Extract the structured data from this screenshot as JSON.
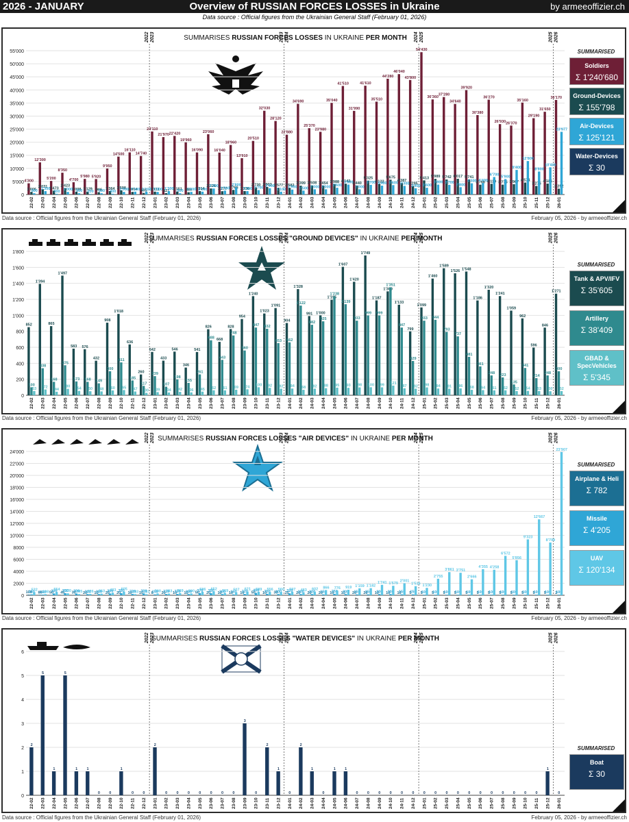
{
  "header": {
    "left": "2026 - JANUARY",
    "title": "Overview of RUSSIAN FORCES LOSSES in Ukraine",
    "right": "by armeeoffizier.ch",
    "subtitle": "Data source : Official figures from the Ukrainian General Staff (February 01, 2026)"
  },
  "footer": {
    "left": "Data source : Official figures from the Ukrainian General Staff (February 01, 2026)",
    "right": "February 05, 2026 - by armeeoffizier.ch"
  },
  "summary_label": "SUMMARISED",
  "months": [
    "22-02",
    "22-03",
    "22-04",
    "22-05",
    "22-06",
    "22-07",
    "22-08",
    "22-09",
    "22-10",
    "22-11",
    "22-12",
    "23-01",
    "23-02",
    "23-03",
    "23-04",
    "23-05",
    "23-06",
    "23-07",
    "23-08",
    "23-09",
    "23-10",
    "23-11",
    "23-12",
    "24-01",
    "24-02",
    "24-03",
    "24-04",
    "24-05",
    "24-06",
    "24-07",
    "24-08",
    "24-09",
    "24-10",
    "24-11",
    "24-12",
    "25-01",
    "25-02",
    "25-03",
    "25-04",
    "25-05",
    "25-06",
    "25-07",
    "25-08",
    "25-09",
    "25-10",
    "25-11",
    "25-12",
    "26-01"
  ],
  "year_markers": [
    {
      "after": 10,
      "label": "2022\n2023"
    },
    {
      "after": 22,
      "label": "2023\n2024"
    },
    {
      "after": 34,
      "label": "2024\n2025"
    },
    {
      "after": 46,
      "label": "2025\n2026"
    }
  ],
  "panels": [
    {
      "id": "overall",
      "title_parts": [
        {
          "t": "SUMMARISES ",
          "b": false
        },
        {
          "t": "RUSSIAN FORCES LOSSES",
          "b": true
        },
        {
          "t": " IN UKRAINE ",
          "b": false
        },
        {
          "t": "PER MONTH",
          "b": true
        }
      ],
      "emblem": "eagle-emblem",
      "summary": [
        {
          "name": "Soldiers",
          "value": "Σ 1'240'680",
          "color": "#6e1f36"
        },
        {
          "name": "Ground-Devices",
          "value": "Σ 155'798",
          "color": "#1b4b4f"
        },
        {
          "name": "Air-Devices",
          "value": "Σ 125'121",
          "color": "#2fa6d6"
        },
        {
          "name": "Water-Devices",
          "value": "Σ 30",
          "color": "#1b3a5e"
        }
      ]
    },
    {
      "id": "ground",
      "title_parts": [
        {
          "t": "SUMMARISES ",
          "b": false
        },
        {
          "t": "RUSSIAN FORCES LOSSES \"GROUND DEVICES\"",
          "b": true
        },
        {
          "t": " IN UKRAINE ",
          "b": false
        },
        {
          "t": "PER MONTH",
          "b": true
        }
      ],
      "emblem": "army-star-emblem",
      "summary": [
        {
          "name": "Tank & APV/IFV",
          "value": "Σ 35'605",
          "color": "#1b4b4f"
        },
        {
          "name": "Artillery",
          "value": "Σ 38'409",
          "color": "#2f8a8e"
        },
        {
          "name": "GBAD & SpecVehicles",
          "value": "Σ 5'345",
          "color": "#5fc0c8"
        }
      ]
    },
    {
      "id": "air",
      "title_parts": [
        {
          "t": "SUMMARISES ",
          "b": false
        },
        {
          "t": "RUSSIAN FORCES LOSSES \"AIR DEVICES\"",
          "b": true
        },
        {
          "t": " IN UKRAINE ",
          "b": false
        },
        {
          "t": "PER MONTH",
          "b": true
        }
      ],
      "emblem": "air-star-emblem",
      "summary": [
        {
          "name": "Airplane & Heli",
          "value": "Σ 782",
          "color": "#1c6f93"
        },
        {
          "name": "Missile",
          "value": "Σ 4'205",
          "color": "#2fa6d6"
        },
        {
          "name": "UAV",
          "value": "Σ 120'134",
          "color": "#5fc7e6"
        }
      ]
    },
    {
      "id": "water",
      "title_parts": [
        {
          "t": "SUMMARISES ",
          "b": false
        },
        {
          "t": "RUSSIAN FORCES LOSSES \"WATER DEVICES\"",
          "b": true
        },
        {
          "t": " IN UKRAINE ",
          "b": false
        },
        {
          "t": "PER MONTH",
          "b": true
        }
      ],
      "emblem": "navy-flag-emblem",
      "summary": [
        {
          "name": "Boat",
          "value": "Σ 30",
          "color": "#1b3a5e"
        }
      ]
    }
  ],
  "chart_data": [
    {
      "type": "bar",
      "title": "SUMMARISES RUSSIAN FORCES LOSSES IN UKRAINE PER MONTH",
      "ylim": [
        0,
        55000
      ],
      "yticks": [
        "0",
        "5'000",
        "10'000",
        "15'000",
        "20'000",
        "25'000",
        "30'000",
        "35'000",
        "40'000",
        "45'000",
        "50'000",
        "55'000"
      ],
      "series": [
        {
          "name": "Soldiers",
          "color": "#6e1f36",
          "label": "#6e1f36",
          "values": [
            4300,
            12300,
            5200,
            8350,
            4700,
            5980,
            5920,
            9950,
            14500,
            16110,
            14740,
            24110,
            21970,
            22420,
            19960,
            16090,
            23060,
            16040,
            18960,
            13910,
            20510,
            32030,
            28120,
            22880,
            34690,
            25370,
            23980,
            35040,
            41510,
            31990,
            41610,
            35510,
            44280,
            46040,
            43800,
            54430,
            36360,
            37280,
            34640,
            39920,
            30380,
            36270,
            26930,
            26370,
            35160,
            29190,
            31650,
            36170
          ]
        },
        {
          "name": "Ground-Devices",
          "color": "#1b4b4f",
          "label": "#1b4b4f",
          "values": [
            1006,
            2031,
            1473,
            2423,
            1098,
            1129,
            906,
            1364,
            1598,
            1004,
            605,
            1111,
            527,
            1151,
            886,
            1314,
            2326,
            1277,
            1766,
            1336,
            2730,
            2903,
            2577,
            2582,
            3399,
            3508,
            3454,
            3988,
            4143,
            3440,
            5325,
            4122,
            5675,
            4387,
            3295,
            5413,
            5989,
            5742,
            6017,
            5741,
            3766,
            4110,
            3775,
            3967,
            4574,
            3276,
            4181,
            2252
          ]
        },
        {
          "name": "Air-Devices",
          "color": "#2fa6d6",
          "label": "#2fa6d6",
          "values": [
            500,
            1300,
            300,
            1000,
            500,
            200,
            500,
            300,
            1000,
            1100,
            1100,
            1000,
            1300,
            500,
            1000,
            1100,
            2300,
            1500,
            2800,
            1300,
            1700,
            2400,
            1100,
            1900,
            1500,
            2000,
            2000,
            2600,
            3800,
            2000,
            3700,
            3400,
            3600,
            3300,
            2400,
            2600,
            3800,
            3700,
            2800,
            4300,
            4400,
            6700,
            5900,
            9400,
            12800,
            8800,
            10400,
            23977
          ]
        }
      ]
    },
    {
      "type": "bar",
      "title": "SUMMARISES RUSSIAN FORCES LOSSES \"GROUND DEVICES\" IN UKRAINE PER MONTH",
      "ylim": [
        0,
        1800
      ],
      "yticks": [
        "0",
        "200",
        "400",
        "600",
        "800",
        "1'000",
        "1'200",
        "1'400",
        "1'600",
        "1'800"
      ],
      "series": [
        {
          "name": "Tank & APV/IFV",
          "color": "#1b4b4f",
          "label": "#1b4b4f",
          "values": [
            852,
            1394,
            865,
            1497,
            583,
            576,
            432,
            908,
            1018,
            636,
            260,
            542,
            433,
            546,
            346,
            541,
            826,
            668,
            828,
            954,
            1240,
            1023,
            1091,
            904,
            1328,
            991,
            1000,
            1195,
            1607,
            1420,
            1749,
            1187,
            1300,
            1133,
            799,
            1099,
            1460,
            1589,
            1526,
            1548,
            1186,
            1320,
            1241,
            1059,
            962,
            596,
            846,
            1271
          ]
        },
        {
          "name": "Artillery",
          "color": "#2f8a8e",
          "label": "#2f8a8e",
          "values": [
            100,
            338,
            168,
            375,
            173,
            168,
            149,
            300,
            411,
            185,
            117,
            239,
            107,
            198,
            155,
            261,
            688,
            443,
            748,
            560,
            847,
            832,
            653,
            662,
            1122,
            882,
            925,
            1238,
            1139,
            933,
            999,
            999,
            1351,
            847,
            429,
            933,
            944,
            793,
            737,
            481,
            361,
            248,
            223,
            135,
            341,
            214,
            248,
            300
          ]
        },
        {
          "name": "GBAD & SpecVehicles",
          "color": "#5fc0c8",
          "label": "#5fc0c8",
          "values": [
            53,
            72,
            44,
            80,
            54,
            50,
            48,
            60,
            65,
            47,
            30,
            39,
            34,
            42,
            36,
            45,
            62,
            61,
            69,
            74,
            100,
            92,
            82,
            84,
            68,
            82,
            88,
            95,
            93,
            98,
            100,
            99,
            121,
            87,
            82,
            98,
            84,
            81,
            86,
            68,
            64,
            61,
            62,
            52,
            54,
            53,
            50,
            52
          ]
        }
      ]
    },
    {
      "type": "bar",
      "title": "SUMMARISES RUSSIAN FORCES LOSSES \"AIR DEVICES\" IN UKRAINE PER MONTH",
      "ylim": [
        0,
        24000
      ],
      "yticks": [
        "0",
        "2000",
        "4000",
        "6000",
        "8000",
        "10'000",
        "12'000",
        "14'000",
        "16'000",
        "18'000",
        "20'000",
        "22'000",
        "24'000"
      ],
      "series": [
        {
          "name": "Airplane & Heli",
          "color": "#1c6f93",
          "label": "#1c6f93",
          "values": [
            100,
            80,
            50,
            45,
            30,
            20,
            15,
            20,
            20,
            10,
            10,
            8,
            20,
            10,
            15,
            50,
            20,
            10,
            10,
            10,
            50,
            10,
            30,
            25,
            20,
            20,
            20,
            10,
            15,
            20,
            20,
            10,
            10,
            10,
            5,
            5,
            5,
            5,
            5,
            5,
            5,
            5,
            5,
            5,
            5,
            5,
            5,
            2
          ]
        },
        {
          "name": "Missile",
          "color": "#2fa6d6",
          "label": "#2fa6d6",
          "values": [
            150,
            110,
            300,
            350,
            300,
            200,
            200,
            300,
            350,
            220,
            300,
            150,
            210,
            220,
            200,
            370,
            350,
            200,
            150,
            220,
            400,
            250,
            200,
            320,
            200,
            200,
            150,
            250,
            200,
            150,
            150,
            200,
            200,
            150,
            150,
            100,
            100,
            100,
            100,
            100,
            100,
            100,
            100,
            100,
            100,
            100,
            100,
            100
          ]
        },
        {
          "name": "UAV",
          "color": "#5fc7e6",
          "label": "#5fc7e6",
          "values": [
            532,
            198,
            554,
            320,
            205,
            226,
            263,
            433,
            605,
            193,
            181,
            300,
            283,
            369,
            300,
            586,
            652,
            369,
            507,
            621,
            589,
            556,
            560,
            597,
            483,
            602,
            866,
            776,
            919,
            1159,
            1182,
            1741,
            1579,
            2001,
            1516,
            1230,
            2755,
            3861,
            3751,
            2666,
            4355,
            4258,
            6572,
            5856,
            9323,
            12667,
            8799,
            23907
          ]
        }
      ]
    },
    {
      "type": "bar",
      "title": "SUMMARISES RUSSIAN FORCES LOSSES \"WATER DEVICES\" IN UKRAINE PER MONTH",
      "ylim": [
        0,
        6
      ],
      "yticks": [
        "0",
        "1",
        "2",
        "3",
        "4",
        "5",
        "6"
      ],
      "series": [
        {
          "name": "Boat",
          "color": "#1b3a5e",
          "label": "#1b3a5e",
          "values": [
            2,
            5,
            1,
            5,
            1,
            1,
            0,
            0,
            1,
            0,
            0,
            2,
            0,
            0,
            0,
            0,
            0,
            0,
            0,
            3,
            0,
            2,
            1,
            0,
            2,
            1,
            0,
            1,
            1,
            0,
            0,
            0,
            0,
            0,
            0,
            0,
            0,
            0,
            0,
            0,
            0,
            0,
            0,
            0,
            0,
            0,
            1,
            0
          ]
        }
      ]
    }
  ]
}
